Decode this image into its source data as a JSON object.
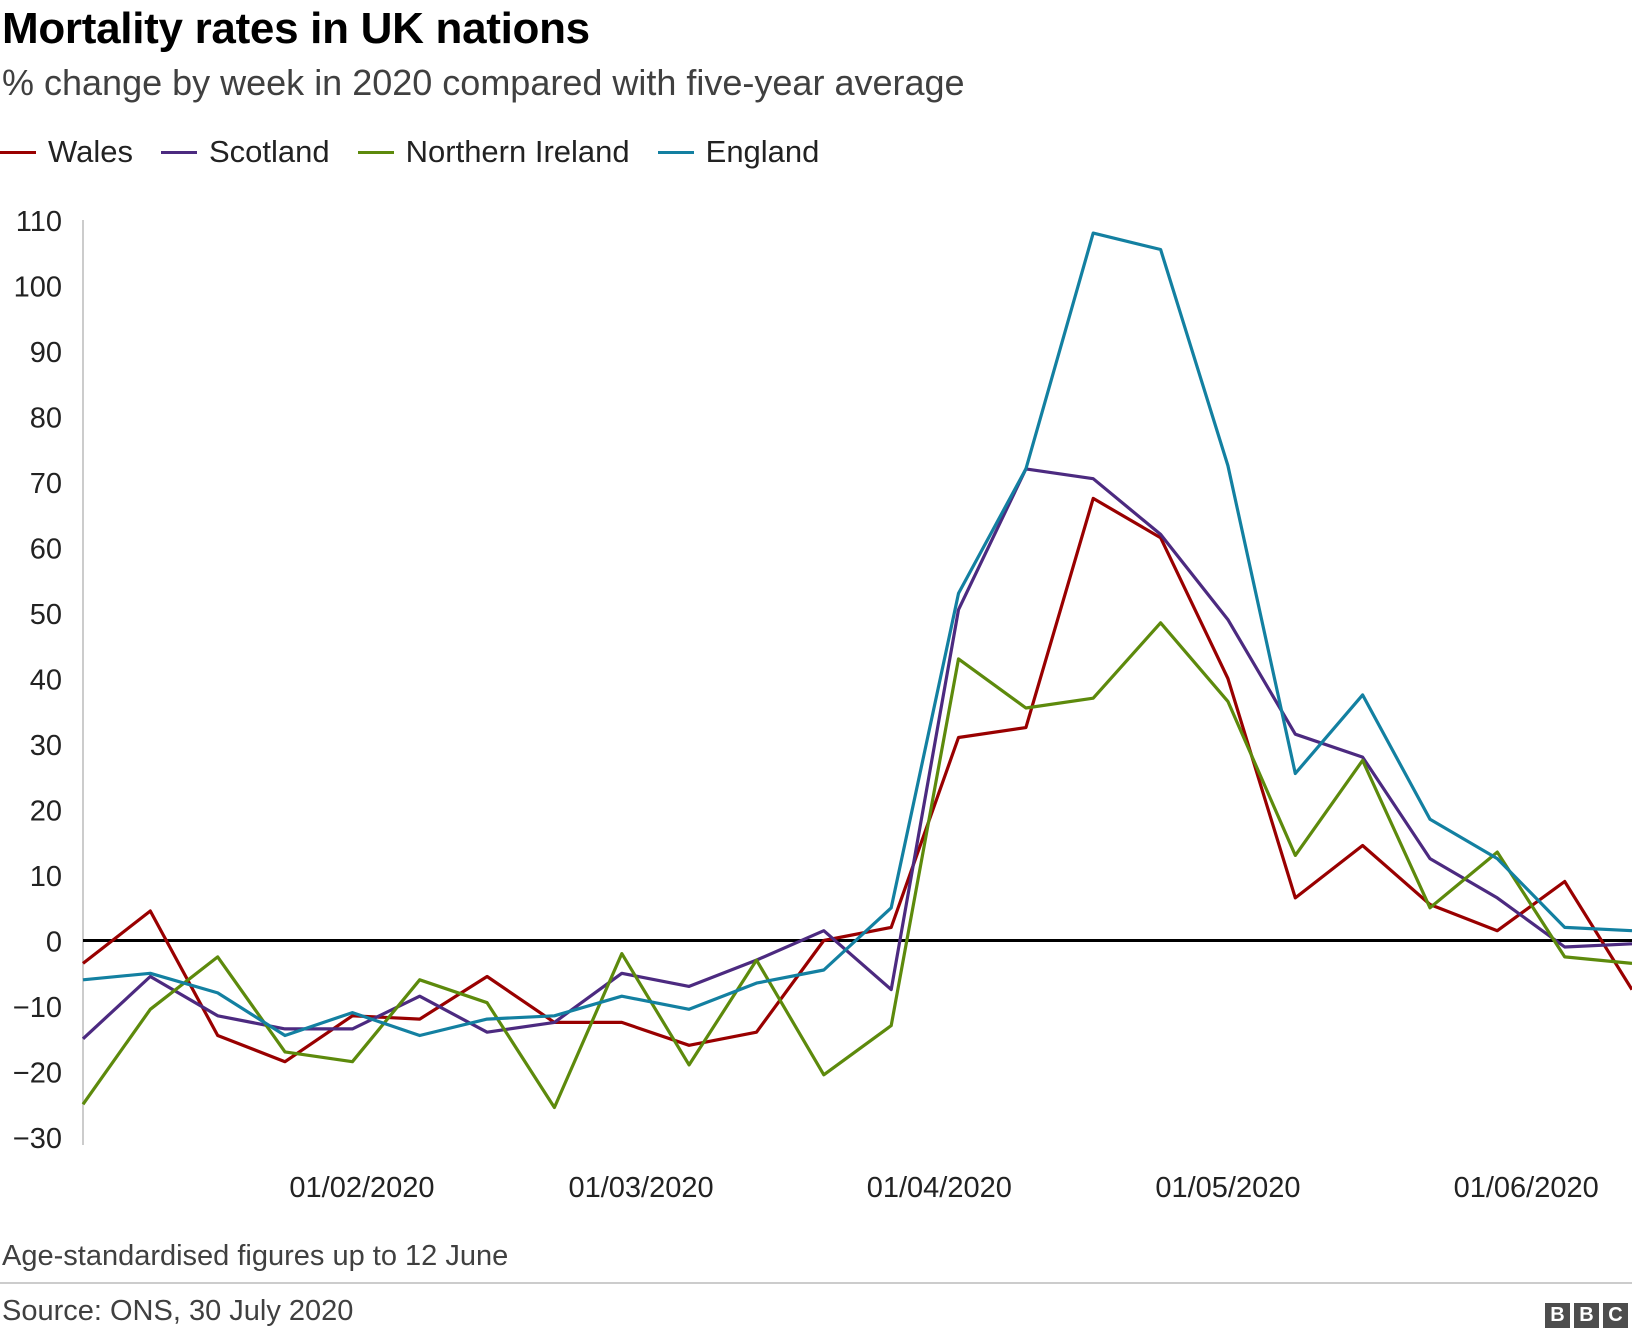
{
  "chart_data": {
    "type": "line",
    "title": "Mortality rates in UK nations",
    "subtitle": "% change by week in 2020 compared with five-year average",
    "footnote": "Age-standardised figures up to 12 June",
    "source": "Source: ONS, 30 July 2020",
    "x": [
      "03/01/2020",
      "10/01/2020",
      "17/01/2020",
      "24/01/2020",
      "31/01/2020",
      "07/02/2020",
      "14/02/2020",
      "21/02/2020",
      "28/02/2020",
      "06/03/2020",
      "13/03/2020",
      "20/03/2020",
      "27/03/2020",
      "03/04/2020",
      "10/04/2020",
      "17/04/2020",
      "24/04/2020",
      "01/05/2020",
      "08/05/2020",
      "15/05/2020",
      "22/05/2020",
      "29/05/2020",
      "05/06/2020",
      "12/06/2020"
    ],
    "x_ticks": [
      "01/02/2020",
      "01/03/2020",
      "01/04/2020",
      "01/05/2020",
      "01/06/2020"
    ],
    "y_ticks": [
      110,
      100,
      90,
      80,
      70,
      60,
      50,
      40,
      30,
      20,
      10,
      0,
      -10,
      -20,
      -30
    ],
    "ylim": [
      -30,
      110
    ],
    "xlabel": "",
    "ylabel": "",
    "grid": false,
    "legend_position": "top-left",
    "series": [
      {
        "name": "Wales",
        "color": "#990000",
        "values": [
          -3.5,
          4.5,
          -14.5,
          -18.5,
          -11.5,
          -12,
          -5.5,
          -12.5,
          -12.5,
          -16,
          -14,
          0,
          2,
          31,
          32.5,
          67.5,
          61.5,
          40,
          6.5,
          14.5,
          5.5,
          1.5,
          9,
          -7.5
        ]
      },
      {
        "name": "Scotland",
        "color": "#4c2a80",
        "values": [
          -15,
          -5.5,
          -11.5,
          -13.5,
          -13.5,
          -8.5,
          -14,
          -12.5,
          -5,
          -7,
          -3,
          1.5,
          -7.5,
          50.5,
          72,
          70.5,
          62,
          49,
          31.5,
          28,
          12.5,
          6.5,
          -1,
          -0.5
        ]
      },
      {
        "name": "Northern Ireland",
        "color": "#5d8a0c",
        "values": [
          -25,
          -10.5,
          -2.5,
          -17,
          -18.5,
          -6,
          -9.5,
          -25.5,
          -2,
          -19,
          -3,
          -20.5,
          -13,
          43,
          35.5,
          37,
          48.5,
          36.5,
          13,
          27.5,
          5,
          13.5,
          -2.5,
          -3.5
        ]
      },
      {
        "name": "England",
        "color": "#1380a1",
        "values": [
          -6,
          -5,
          -8,
          -14.5,
          -11,
          -14.5,
          -12,
          -11.5,
          -8.5,
          -10.5,
          -6.5,
          -4.5,
          5,
          53,
          72,
          108,
          105.5,
          72.5,
          25.5,
          37.5,
          18.5,
          12.5,
          2,
          1.5
        ]
      }
    ]
  }
}
